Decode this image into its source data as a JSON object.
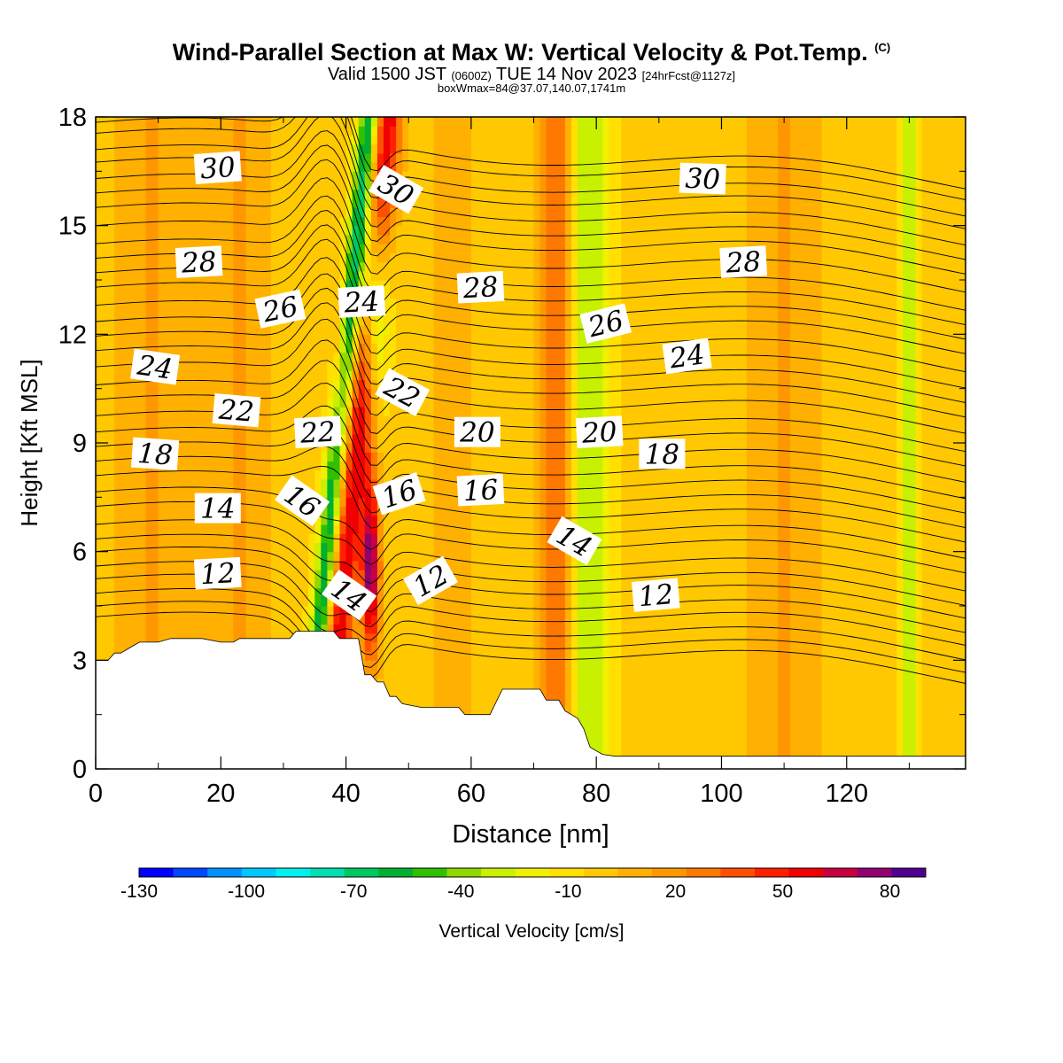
{
  "chart_data": {
    "type": "heatmap",
    "title": "Wind-Parallel Section at Max W: Vertical Velocity & Pot.Temp.",
    "title_mark": "(C)",
    "subtitle_parts": [
      "Valid 1500 JST",
      "(0600Z)",
      "TUE 14 Nov 2023",
      "[24hrFcst@1127z]"
    ],
    "subtitle2": "boxWmax=84@37.07,140.07,1741m",
    "xlabel": "Distance [nm]",
    "ylabel": "Height [Kft MSL]",
    "xlim": [
      0,
      139
    ],
    "ylim": [
      0,
      18
    ],
    "xticks": [
      0,
      20,
      40,
      60,
      80,
      100,
      120
    ],
    "yticks": [
      0,
      3,
      6,
      9,
      12,
      15,
      18
    ],
    "colorbar": {
      "label": "Vertical Velocity [cm/s]",
      "min": -130,
      "max": 90,
      "step": 10,
      "tick_labels": [
        -130,
        -100,
        -70,
        -40,
        -10,
        20,
        50,
        80
      ],
      "colors": [
        "#0000ff",
        "#0048ff",
        "#0090ff",
        "#00c8ff",
        "#00f0f0",
        "#00e0b0",
        "#00c860",
        "#00b030",
        "#30c000",
        "#90d800",
        "#c8f000",
        "#f0f000",
        "#ffe000",
        "#ffc800",
        "#ffb000",
        "#ff9800",
        "#ff7800",
        "#ff5000",
        "#ff2000",
        "#f00000",
        "#c80040",
        "#900070",
        "#500090"
      ]
    },
    "terrain_kft": [
      [
        0,
        3.0
      ],
      [
        2,
        3.0
      ],
      [
        3,
        3.2
      ],
      [
        4,
        3.2
      ],
      [
        5,
        3.3
      ],
      [
        6,
        3.4
      ],
      [
        7,
        3.5
      ],
      [
        10,
        3.5
      ],
      [
        12,
        3.6
      ],
      [
        17,
        3.6
      ],
      [
        20,
        3.5
      ],
      [
        22,
        3.5
      ],
      [
        23,
        3.6
      ],
      [
        30,
        3.6
      ],
      [
        31,
        3.6
      ],
      [
        32,
        3.8
      ],
      [
        38,
        3.8
      ],
      [
        39,
        3.6
      ],
      [
        42,
        3.6
      ],
      [
        43,
        2.6
      ],
      [
        44,
        2.6
      ],
      [
        45,
        2.4
      ],
      [
        46,
        2.4
      ],
      [
        47,
        2.0
      ],
      [
        48,
        2.0
      ],
      [
        49,
        1.8
      ],
      [
        52,
        1.7
      ],
      [
        58,
        1.7
      ],
      [
        59,
        1.5
      ],
      [
        63,
        1.5
      ],
      [
        65,
        2.2
      ],
      [
        71,
        2.2
      ],
      [
        72,
        1.9
      ],
      [
        74,
        1.9
      ],
      [
        75,
        1.6
      ],
      [
        77,
        1.4
      ],
      [
        78,
        1.1
      ],
      [
        79,
        0.6
      ],
      [
        81,
        0.4
      ],
      [
        83,
        0.35
      ],
      [
        139,
        0.35
      ]
    ],
    "w_features": [
      {
        "x": 38.5,
        "y": 3.0,
        "slope": 0.55,
        "width": 2.4,
        "w": 65
      },
      {
        "x": 44.0,
        "y": 5.5,
        "slope": 0.0,
        "width": 1.4,
        "w": 85
      },
      {
        "x": 39.0,
        "y": 11.0,
        "slope": 0.0,
        "width": 1.0,
        "w": 30
      },
      {
        "x": 36.5,
        "y": 5.0,
        "slope": 0.55,
        "width": 1.6,
        "w": -70
      },
      {
        "x": 44.5,
        "y": 13.0,
        "slope": 0.0,
        "width": 2.2,
        "w": -70
      },
      {
        "x": 74.0,
        "y": 0.0,
        "slope": 0.0,
        "width": 2.8,
        "w": 45
      },
      {
        "x": 78.0,
        "y": 0.0,
        "slope": 0.0,
        "width": 4.0,
        "w": -35
      },
      {
        "x": 130.0,
        "y": 0.0,
        "slope": 0.0,
        "width": 1.5,
        "w": -30
      },
      {
        "x": 9.0,
        "y": 0.0,
        "slope": 0.0,
        "width": 6.0,
        "w": 18
      },
      {
        "x": 23.0,
        "y": 0.0,
        "slope": 0.0,
        "width": 5.0,
        "w": 18
      },
      {
        "x": 57.0,
        "y": 0.0,
        "slope": 0.0,
        "width": 4.0,
        "w": 15
      },
      {
        "x": 110.0,
        "y": 0.0,
        "slope": 0.0,
        "width": 6.0,
        "w": 18
      }
    ],
    "theta_levels_kft_at_x0": [
      4.2,
      4.5,
      4.85,
      5.25,
      5.6,
      6.0,
      6.35,
      6.75,
      7.25,
      7.65,
      8.1,
      8.5,
      8.9,
      9.3,
      9.75,
      10.2,
      10.6,
      11.1,
      11.55,
      11.95,
      12.35,
      12.8,
      13.3,
      13.7,
      14.1,
      14.5,
      15.0,
      15.5,
      15.9,
      16.3,
      16.75,
      17.1,
      17.55,
      17.85
    ],
    "contour_labels": [
      {
        "text": "30",
        "x": 19.5,
        "y": 16.6,
        "rot": -4
      },
      {
        "text": "30",
        "x": 48.0,
        "y": 16.0,
        "rot": 30
      },
      {
        "text": "30",
        "x": 97.0,
        "y": 16.3,
        "rot": 2
      },
      {
        "text": "28",
        "x": 16.5,
        "y": 14.0,
        "rot": -3
      },
      {
        "text": "28",
        "x": 61.5,
        "y": 13.3,
        "rot": -3
      },
      {
        "text": "28",
        "x": 103.5,
        "y": 14.0,
        "rot": -3
      },
      {
        "text": "26",
        "x": 29.5,
        "y": 12.7,
        "rot": -12
      },
      {
        "text": "26",
        "x": 81.5,
        "y": 12.3,
        "rot": -14
      },
      {
        "text": "24",
        "x": 42.5,
        "y": 12.9,
        "rot": -3
      },
      {
        "text": "24",
        "x": 94.5,
        "y": 11.4,
        "rot": -8
      },
      {
        "text": "24",
        "x": 9.5,
        "y": 11.1,
        "rot": 8
      },
      {
        "text": "22",
        "x": 49.0,
        "y": 10.4,
        "rot": 28
      },
      {
        "text": "22",
        "x": 22.5,
        "y": 9.9,
        "rot": 5
      },
      {
        "text": "22",
        "x": 35.5,
        "y": 9.3,
        "rot": -3
      },
      {
        "text": "20",
        "x": 61.0,
        "y": 9.3,
        "rot": 0
      },
      {
        "text": "20",
        "x": 80.5,
        "y": 9.3,
        "rot": -3
      },
      {
        "text": "18",
        "x": 9.5,
        "y": 8.7,
        "rot": 4
      },
      {
        "text": "18",
        "x": 90.5,
        "y": 8.7,
        "rot": 0
      },
      {
        "text": "16",
        "x": 33.0,
        "y": 7.4,
        "rot": 35
      },
      {
        "text": "16",
        "x": 48.5,
        "y": 7.6,
        "rot": -18
      },
      {
        "text": "16",
        "x": 61.5,
        "y": 7.7,
        "rot": -3
      },
      {
        "text": "14",
        "x": 19.5,
        "y": 7.2,
        "rot": 0
      },
      {
        "text": "14",
        "x": 76.5,
        "y": 6.3,
        "rot": 30
      },
      {
        "text": "14",
        "x": 40.5,
        "y": 4.8,
        "rot": 35
      },
      {
        "text": "12",
        "x": 19.5,
        "y": 5.4,
        "rot": -3
      },
      {
        "text": "12",
        "x": 53.5,
        "y": 5.2,
        "rot": -30
      },
      {
        "text": "12",
        "x": 89.5,
        "y": 4.8,
        "rot": -5
      }
    ]
  }
}
